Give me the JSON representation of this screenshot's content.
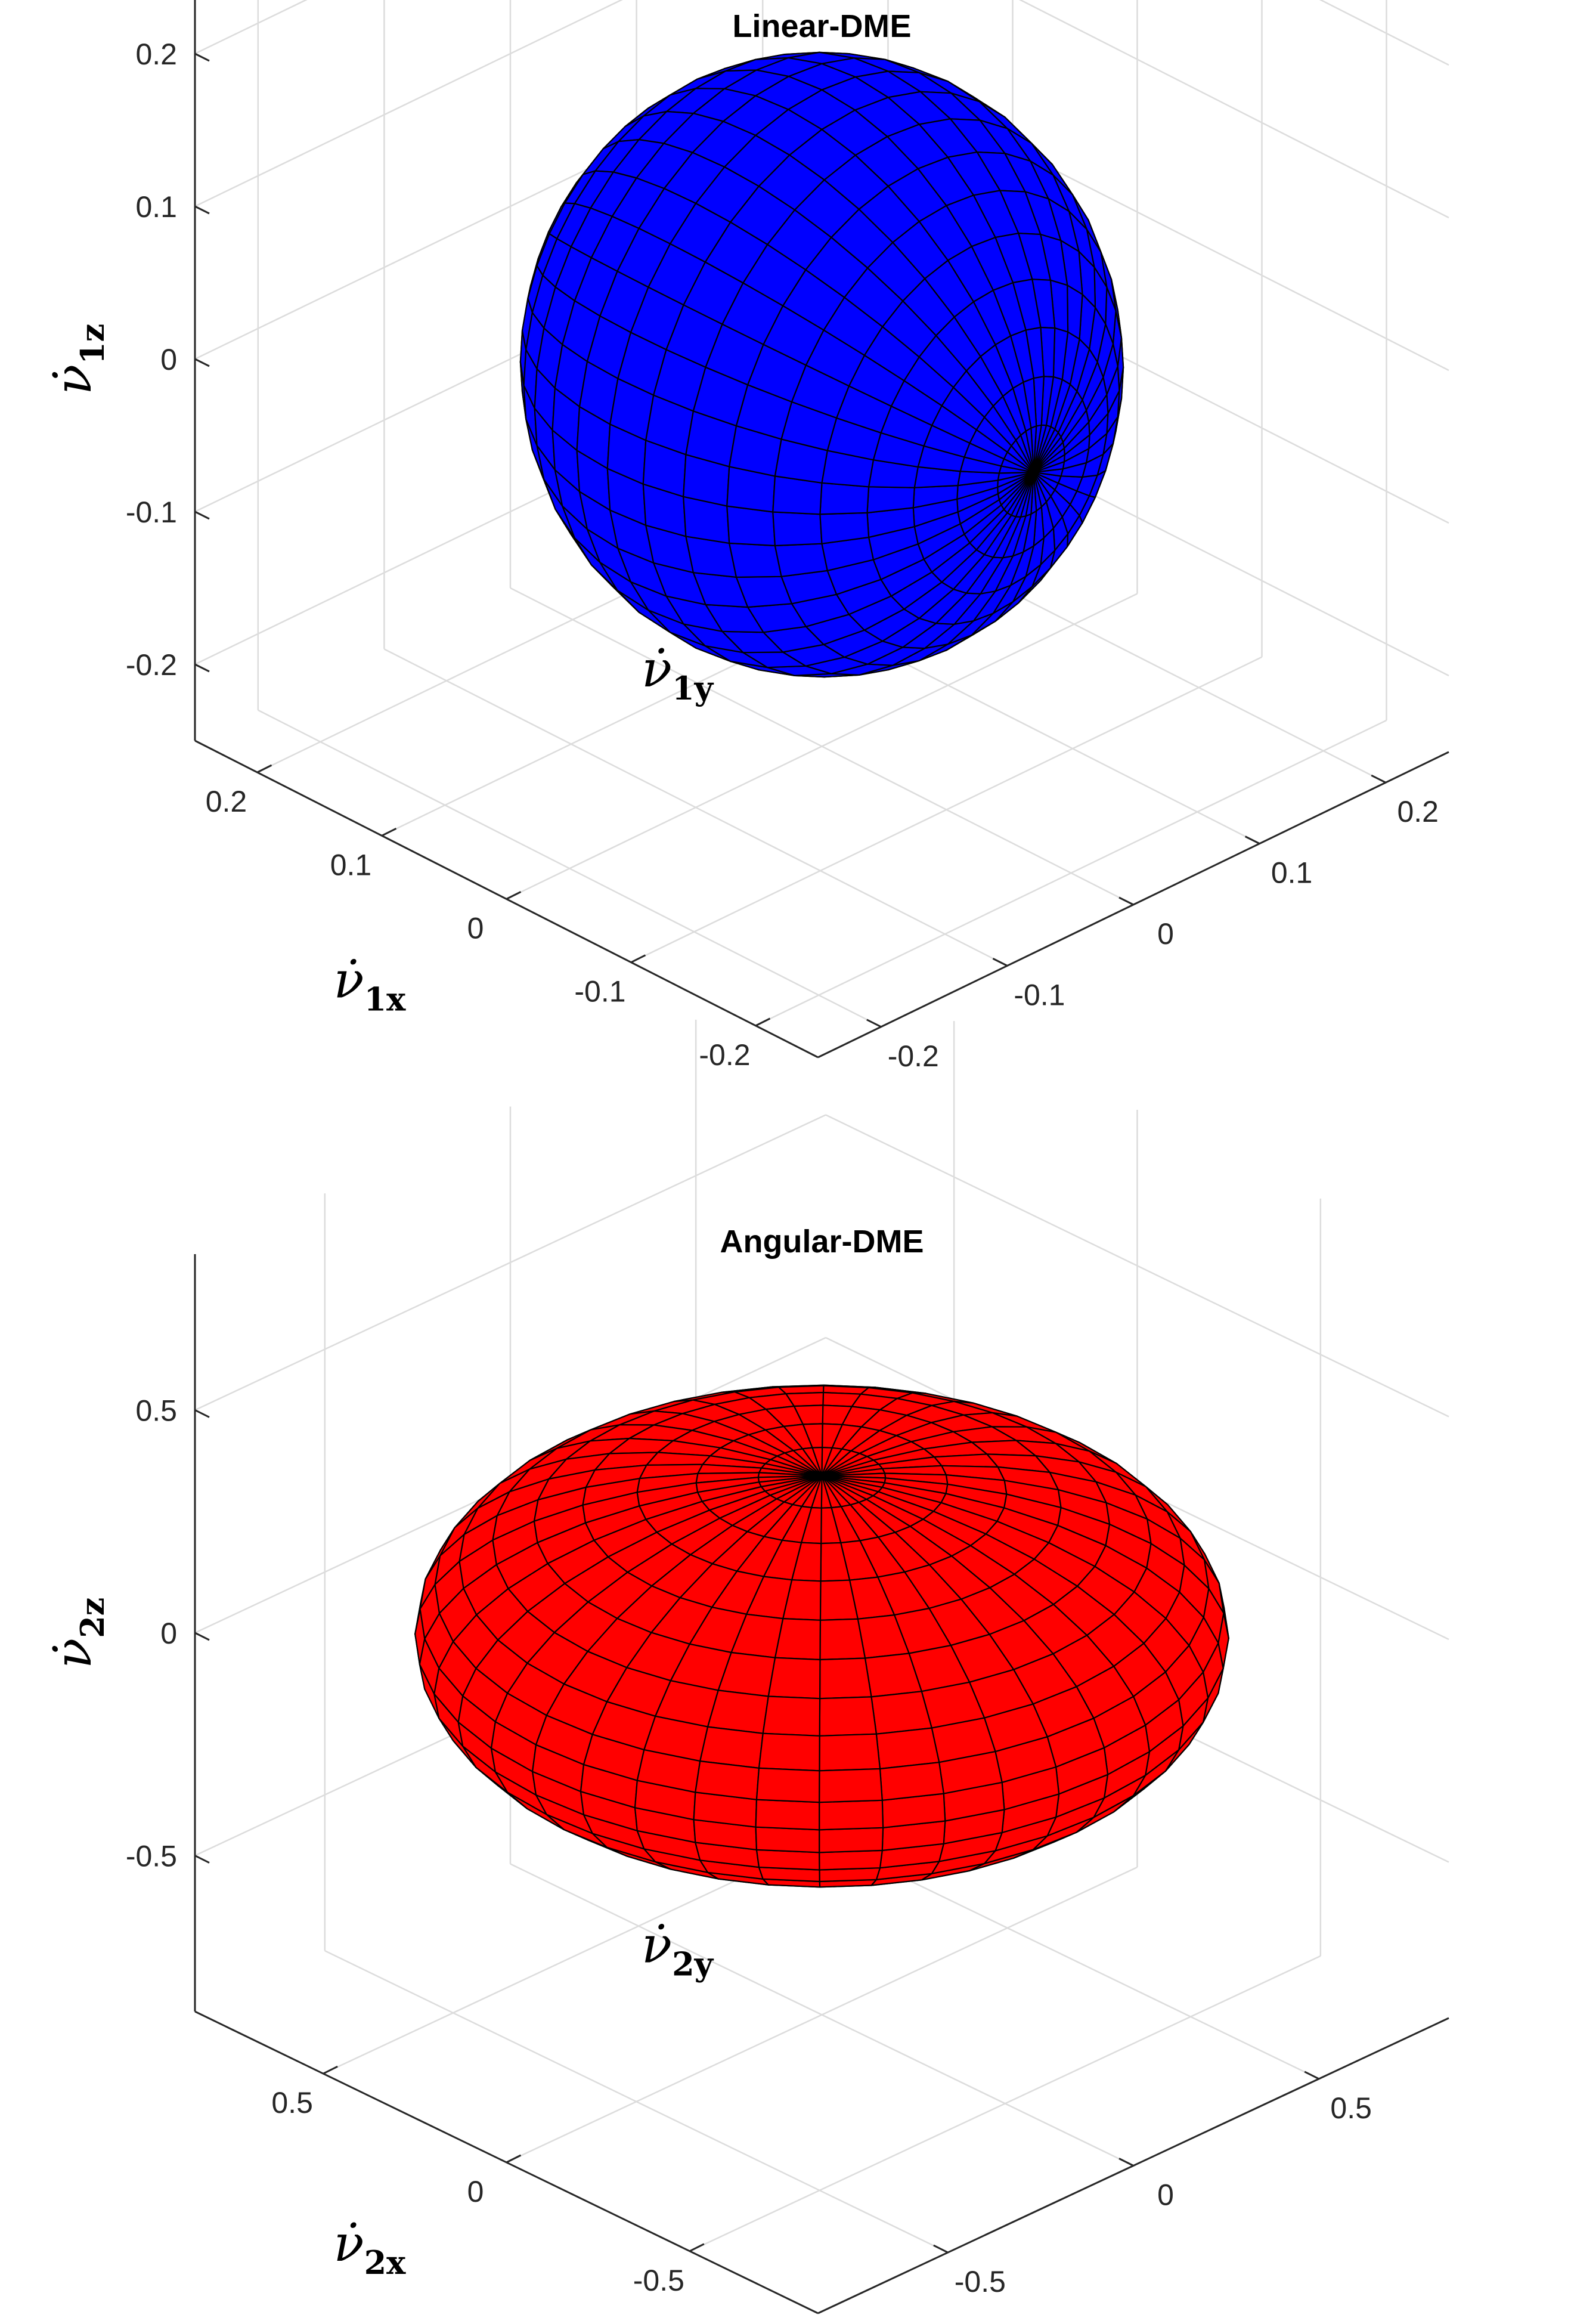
{
  "chart_data": [
    {
      "type": "surface3d",
      "surface": "ellipsoid",
      "title": "Linear-DME",
      "xlabel": {
        "base": "ν̇",
        "sub": "1x"
      },
      "ylabel": {
        "base": "ν̇",
        "sub": "1y"
      },
      "zlabel": {
        "base": "ν̇",
        "sub": "1z"
      },
      "xlim": [
        -0.25,
        0.25
      ],
      "ylim": [
        -0.25,
        0.25
      ],
      "zlim": [
        -0.25,
        0.25
      ],
      "xticks": [
        -0.2,
        -0.1,
        0,
        0.1,
        0.2
      ],
      "yticks": [
        -0.2,
        -0.1,
        0,
        0.1,
        0.2
      ],
      "zticks": [
        -0.2,
        -0.1,
        0,
        0.1,
        0.2
      ],
      "xtick_labels": [
        "-0.2",
        "-0.1",
        "0",
        "0.1",
        "0.2"
      ],
      "ytick_labels": [
        "-0.2",
        "-0.1",
        "0",
        "0.1",
        "0.2"
      ],
      "ztick_labels": [
        "-0.2",
        "-0.1",
        "0",
        "0.1",
        "0.2"
      ],
      "center": [
        0,
        0,
        0
      ],
      "semi_axes": [
        0.17,
        0.17,
        0.18
      ],
      "pole_axis": "x",
      "face_color": "#0000FF",
      "edge_color": "#000000",
      "grid": true
    },
    {
      "type": "surface3d",
      "surface": "ellipsoid",
      "title": "Angular-DME",
      "xlabel": {
        "base": "ν̇",
        "sub": "2x"
      },
      "ylabel": {
        "base": "ν̇",
        "sub": "2y"
      },
      "zlabel": {
        "base": "ν̇",
        "sub": "2z"
      },
      "xlim": [
        -0.85,
        0.85
      ],
      "ylim": [
        -0.85,
        0.85
      ],
      "zlim": [
        -0.85,
        0.85
      ],
      "xticks": [
        -0.5,
        0,
        0.5
      ],
      "yticks": [
        -0.5,
        0,
        0.5
      ],
      "zticks": [
        -0.5,
        0,
        0.5
      ],
      "xtick_labels": [
        "-0.5",
        "0",
        "0.5"
      ],
      "ytick_labels": [
        "-0.5",
        "0",
        "0.5"
      ],
      "ztick_labels": [
        "-0.5",
        "0",
        "0.5"
      ],
      "center": [
        0,
        0,
        0
      ],
      "semi_axes": [
        0.78,
        0.78,
        0.36
      ],
      "pole_axis": "z",
      "face_color": "#FF0000",
      "edge_color": "#000000",
      "grid": true
    }
  ]
}
